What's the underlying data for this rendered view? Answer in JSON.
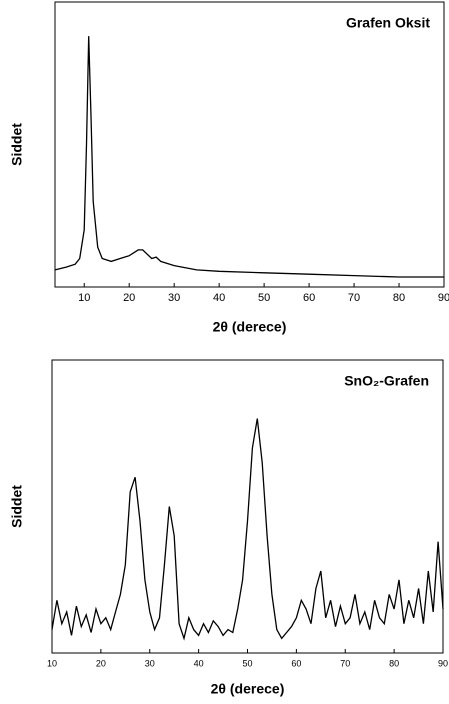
{
  "chart_data": [
    {
      "type": "line",
      "title": "Grafen Oksit",
      "x_label": "2θ (derece)",
      "y_label": "Siddet",
      "x": [
        3.5,
        6,
        8,
        9,
        10,
        10.5,
        11,
        11.5,
        12,
        13,
        14,
        16,
        18,
        20,
        22,
        23,
        25,
        26,
        27,
        30,
        35,
        40,
        50,
        60,
        70,
        80,
        90
      ],
      "values": [
        6,
        7,
        8,
        10,
        20,
        50,
        88,
        60,
        30,
        14,
        10,
        9,
        10,
        11,
        13,
        13,
        10,
        10.5,
        9,
        7.5,
        6,
        5.5,
        5,
        4.5,
        4,
        3.5,
        3.5
      ],
      "color": "#000000",
      "xlim": [
        3.5,
        90
      ],
      "ylim": [
        0,
        100
      ],
      "xticks": [
        10,
        20,
        30,
        40,
        50,
        60,
        70,
        80,
        90
      ]
    },
    {
      "type": "line",
      "title": "SnO₂-Grafen",
      "x_label": "2θ (derece)",
      "y_label": "Siddet",
      "x": [
        10,
        11,
        12,
        13,
        14,
        15,
        16,
        17,
        18,
        19,
        20,
        21,
        22,
        23,
        24,
        25,
        26,
        27,
        28,
        29,
        30,
        31,
        32,
        33,
        34,
        35,
        36,
        37,
        38,
        39,
        40,
        41,
        42,
        43,
        44,
        45,
        46,
        47,
        48,
        49,
        50,
        51,
        52,
        53,
        54,
        55,
        56,
        57,
        58,
        59,
        60,
        61,
        62,
        63,
        64,
        65,
        66,
        67,
        68,
        69,
        70,
        71,
        72,
        73,
        74,
        75,
        76,
        77,
        78,
        79,
        80,
        81,
        82,
        83,
        84,
        85,
        86,
        87,
        88,
        89,
        90
      ],
      "values": [
        8,
        18,
        10,
        14,
        6,
        16,
        9,
        13,
        7,
        15,
        10,
        12,
        8,
        14,
        20,
        30,
        55,
        60,
        45,
        25,
        14,
        8,
        12,
        30,
        50,
        40,
        10,
        5,
        12,
        8,
        6,
        10,
        7,
        11,
        9,
        6,
        8,
        7,
        15,
        25,
        45,
        70,
        80,
        65,
        40,
        20,
        8,
        5,
        7,
        9,
        12,
        18,
        15,
        10,
        22,
        28,
        12,
        18,
        9,
        16,
        10,
        12,
        20,
        10,
        14,
        8,
        18,
        12,
        10,
        20,
        15,
        25,
        10,
        18,
        12,
        22,
        10,
        28,
        14,
        38,
        15
      ],
      "color": "#000000",
      "xlim": [
        10,
        90
      ],
      "ylim": [
        0,
        100
      ],
      "xticks": [
        10,
        20,
        30,
        40,
        50,
        60,
        70,
        80,
        90
      ]
    }
  ]
}
